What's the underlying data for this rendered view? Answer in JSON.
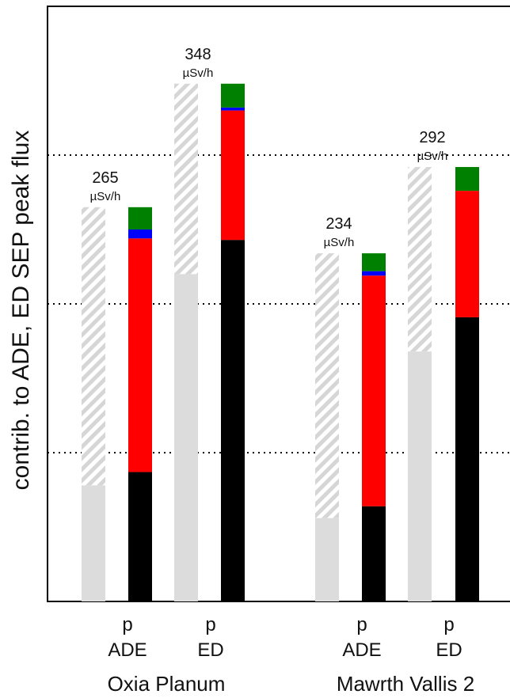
{
  "chart_data": {
    "type": "bar",
    "ylabel": "contrib. to ADE, ED  SEP peak flux",
    "ylim": [
      0,
      400
    ],
    "grid": "horizontal dotted",
    "groups": [
      {
        "name": "Oxia Planum",
        "bars": [
          {
            "label": "p",
            "sublabel": "ADE",
            "style": "gray-hatched",
            "total": 265,
            "solid": 78
          },
          {
            "label": "p",
            "sublabel": "ED",
            "style": "stacked",
            "value_label": "265",
            "unit": "µSv/h",
            "total": 265,
            "segments": [
              {
                "color": "#000000",
                "value": 87
              },
              {
                "color": "#ff0000",
                "value": 157
              },
              {
                "color": "#0000ff",
                "value": 6
              },
              {
                "color": "#008000",
                "value": 15
              }
            ]
          },
          {
            "label": "p",
            "sublabel": "ED",
            "style": "gray-hatched",
            "total": 348,
            "solid": 220
          },
          {
            "label": "p",
            "sublabel": "ED",
            "style": "stacked",
            "value_label": "348",
            "unit": "µSv/h",
            "total": 348,
            "segments": [
              {
                "color": "#000000",
                "value": 243
              },
              {
                "color": "#ff0000",
                "value": 87
              },
              {
                "color": "#0000ff",
                "value": 2
              },
              {
                "color": "#008000",
                "value": 16
              }
            ]
          }
        ]
      },
      {
        "name": "Mawrth Vallis 2",
        "bars": [
          {
            "label": "p",
            "sublabel": "ADE",
            "style": "gray-hatched",
            "total": 234,
            "solid": 56
          },
          {
            "label": "p",
            "sublabel": "ADE",
            "style": "stacked",
            "value_label": "234",
            "unit": "µSv/h",
            "total": 234,
            "segments": [
              {
                "color": "#000000",
                "value": 64
              },
              {
                "color": "#ff0000",
                "value": 155
              },
              {
                "color": "#0000ff",
                "value": 3
              },
              {
                "color": "#008000",
                "value": 12
              }
            ]
          },
          {
            "label": "p",
            "sublabel": "ED",
            "style": "gray-hatched",
            "total": 292,
            "solid": 168
          },
          {
            "label": "p",
            "sublabel": "ED",
            "style": "stacked",
            "value_label": "292",
            "unit": "µSv/h",
            "total": 292,
            "segments": [
              {
                "color": "#000000",
                "value": 191
              },
              {
                "color": "#ff0000",
                "value": 85
              },
              {
                "color": "#008000",
                "value": 16
              }
            ]
          }
        ]
      }
    ],
    "gridlines": [
      100,
      200,
      300
    ],
    "colors": {
      "gray_solid": "#dcdcdc",
      "gray_hatch": "#d0d0d0"
    }
  },
  "axis_labels": {
    "group1_line1": "p",
    "group1_line2": "ADE",
    "group1b_line1": "p",
    "group1b_line2": "ED",
    "group2_line1": "p",
    "group2_line2": "ADE",
    "group2b_line1": "p",
    "group2b_line2": "ED",
    "group1_name": "Oxia Planum",
    "group2_name": "Mawrth Vallis 2"
  }
}
